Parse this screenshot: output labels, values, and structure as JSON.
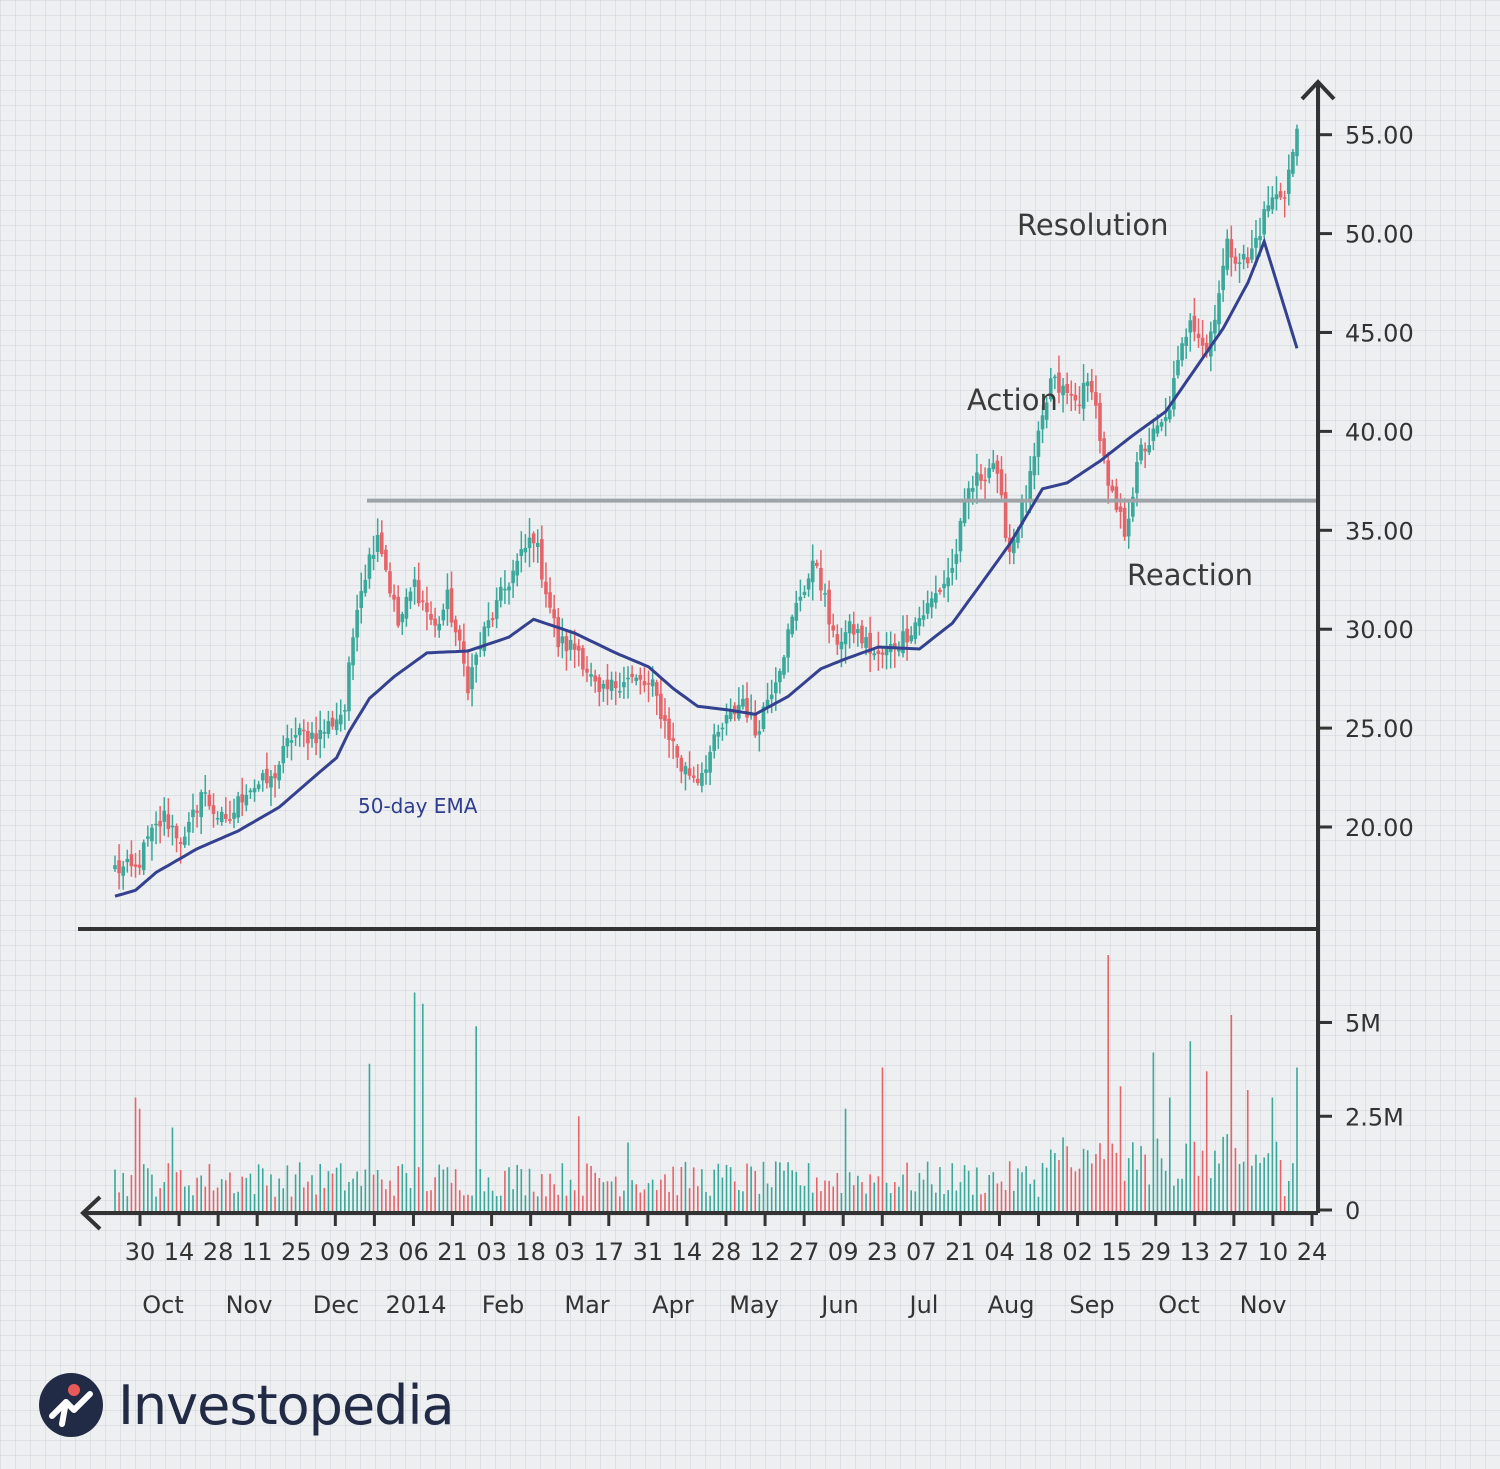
{
  "chart_data": {
    "type": "candlestick",
    "price_axis": {
      "ticks": [
        "55.00",
        "50.00",
        "45.00",
        "40.00",
        "35.00",
        "30.00",
        "25.00",
        "20.00"
      ],
      "ylim": [
        15,
        58
      ]
    },
    "volume_axis": {
      "ticks": [
        "5M",
        "2.5M",
        "0"
      ],
      "ylim": [
        0,
        7.5
      ]
    },
    "x_tick_labels": [
      "30",
      "14",
      "28",
      "11",
      "25",
      "09",
      "23",
      "06",
      "21",
      "03",
      "18",
      "03",
      "17",
      "31",
      "14",
      "28",
      "12",
      "27",
      "09",
      "23",
      "07",
      "21",
      "04",
      "18",
      "02",
      "15",
      "29",
      "13",
      "27",
      "10",
      "24"
    ],
    "month_labels": [
      "Oct",
      "Nov",
      "Dec",
      "2014",
      "Feb",
      "Mar",
      "Apr",
      "May",
      "Jun",
      "Jul",
      "Aug",
      "Sep",
      "Oct",
      "Nov"
    ],
    "resistance_level": 36.5,
    "ema_label": "50-day EMA",
    "annotations": [
      {
        "text": "Resolution"
      },
      {
        "text": "Action"
      },
      {
        "text": "Reaction"
      }
    ],
    "close_anchors": [
      [
        0,
        17.9
      ],
      [
        5,
        17.8
      ],
      [
        8,
        19.3
      ],
      [
        12,
        20.5
      ],
      [
        17,
        19.2
      ],
      [
        21,
        21.8
      ],
      [
        27,
        20.0
      ],
      [
        32,
        22.0
      ],
      [
        38,
        22.3
      ],
      [
        43,
        24.6
      ],
      [
        50,
        24.7
      ],
      [
        56,
        26.0
      ],
      [
        59,
        31.5
      ],
      [
        64,
        35.0
      ],
      [
        69,
        30.2
      ],
      [
        73,
        32.3
      ],
      [
        78,
        30.0
      ],
      [
        81,
        31.5
      ],
      [
        86,
        27.3
      ],
      [
        90,
        29.8
      ],
      [
        96,
        32.5
      ],
      [
        102,
        34.8
      ],
      [
        108,
        29.3
      ],
      [
        113,
        29.0
      ],
      [
        118,
        26.5
      ],
      [
        124,
        27.6
      ],
      [
        131,
        27.0
      ],
      [
        138,
        23.0
      ],
      [
        142,
        22.5
      ],
      [
        148,
        25.0
      ],
      [
        153,
        26.5
      ],
      [
        156,
        24.8
      ],
      [
        162,
        28.3
      ],
      [
        167,
        31.8
      ],
      [
        171,
        33.4
      ],
      [
        175,
        29.4
      ],
      [
        180,
        30.0
      ],
      [
        186,
        28.5
      ],
      [
        192,
        29.6
      ],
      [
        198,
        31.1
      ],
      [
        204,
        33.0
      ],
      [
        208,
        37.0
      ],
      [
        214,
        38.5
      ],
      [
        218,
        34.0
      ],
      [
        223,
        37.5
      ],
      [
        228,
        42.5
      ],
      [
        234,
        41.5
      ],
      [
        238,
        42.5
      ],
      [
        242,
        37.0
      ],
      [
        246,
        35.0
      ],
      [
        250,
        39.0
      ],
      [
        256,
        40.5
      ],
      [
        262,
        46.0
      ],
      [
        266,
        44.0
      ],
      [
        271,
        49.3
      ],
      [
        276,
        48.5
      ],
      [
        281,
        51.5
      ],
      [
        285,
        52.2
      ],
      [
        288,
        55.0
      ]
    ],
    "ema_anchors": [
      [
        0,
        16.5
      ],
      [
        5,
        16.8
      ],
      [
        10,
        17.7
      ],
      [
        20,
        18.9
      ],
      [
        30,
        19.8
      ],
      [
        40,
        21.0
      ],
      [
        50,
        22.8
      ],
      [
        54,
        23.5
      ],
      [
        57,
        24.8
      ],
      [
        62,
        26.5
      ],
      [
        68,
        27.6
      ],
      [
        76,
        28.8
      ],
      [
        86,
        28.9
      ],
      [
        96,
        29.6
      ],
      [
        102,
        30.5
      ],
      [
        112,
        29.8
      ],
      [
        122,
        28.8
      ],
      [
        130,
        28.1
      ],
      [
        136,
        27.0
      ],
      [
        142,
        26.1
      ],
      [
        150,
        25.9
      ],
      [
        156,
        25.7
      ],
      [
        164,
        26.6
      ],
      [
        172,
        28.0
      ],
      [
        178,
        28.5
      ],
      [
        186,
        29.1
      ],
      [
        196,
        29.0
      ],
      [
        204,
        30.3
      ],
      [
        210,
        32.0
      ],
      [
        218,
        34.3
      ],
      [
        226,
        37.1
      ],
      [
        232,
        37.4
      ],
      [
        240,
        38.5
      ],
      [
        248,
        39.8
      ],
      [
        256,
        41.0
      ],
      [
        262,
        42.8
      ],
      [
        270,
        45.2
      ],
      [
        276,
        47.5
      ],
      [
        280,
        49.6
      ],
      [
        288,
        44.2
      ]
    ],
    "volume_spikes": [
      [
        5,
        3.0
      ],
      [
        6,
        2.7
      ],
      [
        14,
        2.2
      ],
      [
        62,
        3.9
      ],
      [
        73,
        5.8
      ],
      [
        75,
        5.5
      ],
      [
        88,
        4.9
      ],
      [
        113,
        2.5
      ],
      [
        125,
        1.8
      ],
      [
        178,
        2.7
      ],
      [
        187,
        3.8
      ],
      [
        242,
        6.8
      ],
      [
        245,
        3.3
      ],
      [
        253,
        4.2
      ],
      [
        257,
        3.0
      ],
      [
        262,
        4.5
      ],
      [
        266,
        3.7
      ],
      [
        272,
        5.2
      ],
      [
        276,
        3.2
      ],
      [
        282,
        3.0
      ],
      [
        288,
        3.8
      ]
    ],
    "session_count": 289
  },
  "logo": {
    "text": "Investopedia"
  }
}
